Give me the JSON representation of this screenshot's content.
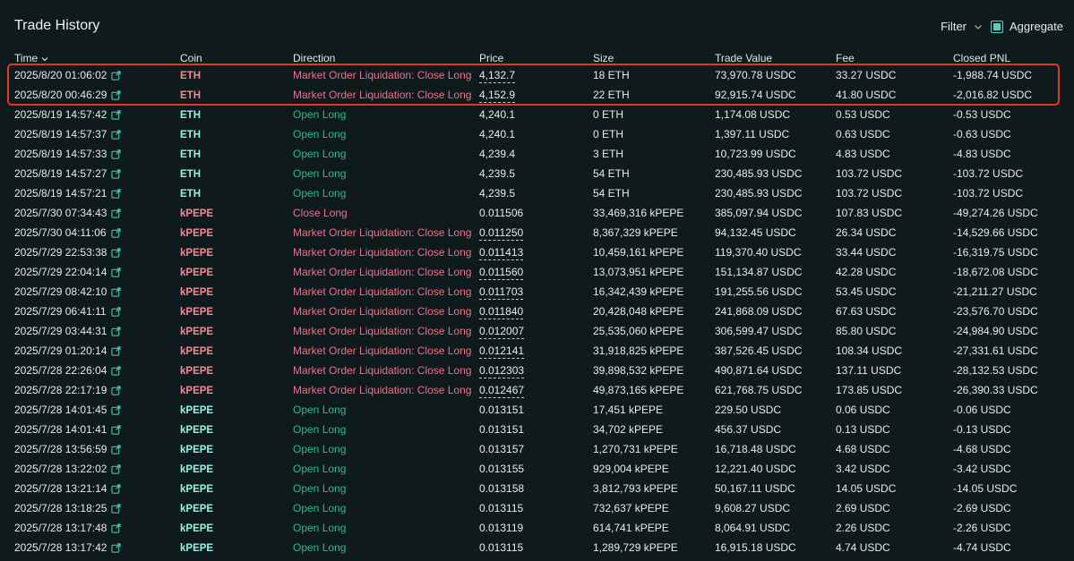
{
  "header": {
    "title": "Trade History",
    "filter_label": "Filter",
    "aggregate_label": "Aggregate",
    "aggregate_checked": true
  },
  "columns": [
    "Time",
    "Coin",
    "Direction",
    "Price",
    "Size",
    "Trade Value",
    "Fee",
    "Closed PNL"
  ],
  "colors": {
    "accent": "#50d2c1",
    "long": "#2fb996",
    "short": "#ed7088",
    "highlight": "#e5352b"
  },
  "rows": [
    {
      "time": "2025/8/20 01:06:02",
      "coin": "ETH",
      "direction": "Market Order Liquidation: Close Long",
      "price": "4,132.7",
      "size": "18 ETH",
      "value": "73,970.78 USDC",
      "fee": "33.27 USDC",
      "pnl": "-1,988.74 USDC",
      "side": "short",
      "liq": true
    },
    {
      "time": "2025/8/20 00:46:29",
      "coin": "ETH",
      "direction": "Market Order Liquidation: Close Long",
      "price": "4,152.9",
      "size": "22 ETH",
      "value": "92,915.74 USDC",
      "fee": "41.80 USDC",
      "pnl": "-2,016.82 USDC",
      "side": "short",
      "liq": true
    },
    {
      "time": "2025/8/19 14:57:42",
      "coin": "ETH",
      "direction": "Open Long",
      "price": "4,240.1",
      "size": "0 ETH",
      "value": "1,174.08 USDC",
      "fee": "0.53 USDC",
      "pnl": "-0.53 USDC",
      "side": "long",
      "liq": false
    },
    {
      "time": "2025/8/19 14:57:37",
      "coin": "ETH",
      "direction": "Open Long",
      "price": "4,240.1",
      "size": "0 ETH",
      "value": "1,397.11 USDC",
      "fee": "0.63 USDC",
      "pnl": "-0.63 USDC",
      "side": "long",
      "liq": false
    },
    {
      "time": "2025/8/19 14:57:33",
      "coin": "ETH",
      "direction": "Open Long",
      "price": "4,239.4",
      "size": "3 ETH",
      "value": "10,723.99 USDC",
      "fee": "4.83 USDC",
      "pnl": "-4.83 USDC",
      "side": "long",
      "liq": false
    },
    {
      "time": "2025/8/19 14:57:27",
      "coin": "ETH",
      "direction": "Open Long",
      "price": "4,239.5",
      "size": "54 ETH",
      "value": "230,485.93 USDC",
      "fee": "103.72 USDC",
      "pnl": "-103.72 USDC",
      "side": "long",
      "liq": false
    },
    {
      "time": "2025/8/19 14:57:21",
      "coin": "ETH",
      "direction": "Open Long",
      "price": "4,239.5",
      "size": "54 ETH",
      "value": "230,485.93 USDC",
      "fee": "103.72 USDC",
      "pnl": "-103.72 USDC",
      "side": "long",
      "liq": false
    },
    {
      "time": "2025/7/30 07:34:43",
      "coin": "kPEPE",
      "direction": "Close Long",
      "price": "0.011506",
      "size": "33,469,316 kPEPE",
      "value": "385,097.94 USDC",
      "fee": "107.83 USDC",
      "pnl": "-49,274.26 USDC",
      "side": "short",
      "liq": false
    },
    {
      "time": "2025/7/30 04:11:06",
      "coin": "kPEPE",
      "direction": "Market Order Liquidation: Close Long",
      "price": "0.011250",
      "size": "8,367,329 kPEPE",
      "value": "94,132.45 USDC",
      "fee": "26.34 USDC",
      "pnl": "-14,529.66 USDC",
      "side": "short",
      "liq": true
    },
    {
      "time": "2025/7/29 22:53:38",
      "coin": "kPEPE",
      "direction": "Market Order Liquidation: Close Long",
      "price": "0.011413",
      "size": "10,459,161 kPEPE",
      "value": "119,370.40 USDC",
      "fee": "33.44 USDC",
      "pnl": "-16,319.75 USDC",
      "side": "short",
      "liq": true
    },
    {
      "time": "2025/7/29 22:04:14",
      "coin": "kPEPE",
      "direction": "Market Order Liquidation: Close Long",
      "price": "0.011560",
      "size": "13,073,951 kPEPE",
      "value": "151,134.87 USDC",
      "fee": "42.28 USDC",
      "pnl": "-18,672.08 USDC",
      "side": "short",
      "liq": true
    },
    {
      "time": "2025/7/29 08:42:10",
      "coin": "kPEPE",
      "direction": "Market Order Liquidation: Close Long",
      "price": "0.011703",
      "size": "16,342,439 kPEPE",
      "value": "191,255.56 USDC",
      "fee": "53.45 USDC",
      "pnl": "-21,211.27 USDC",
      "side": "short",
      "liq": true
    },
    {
      "time": "2025/7/29 06:41:11",
      "coin": "kPEPE",
      "direction": "Market Order Liquidation: Close Long",
      "price": "0.011840",
      "size": "20,428,048 kPEPE",
      "value": "241,868.09 USDC",
      "fee": "67.63 USDC",
      "pnl": "-23,576.70 USDC",
      "side": "short",
      "liq": true
    },
    {
      "time": "2025/7/29 03:44:31",
      "coin": "kPEPE",
      "direction": "Market Order Liquidation: Close Long",
      "price": "0.012007",
      "size": "25,535,060 kPEPE",
      "value": "306,599.47 USDC",
      "fee": "85.80 USDC",
      "pnl": "-24,984.90 USDC",
      "side": "short",
      "liq": true
    },
    {
      "time": "2025/7/29 01:20:14",
      "coin": "kPEPE",
      "direction": "Market Order Liquidation: Close Long",
      "price": "0.012141",
      "size": "31,918,825 kPEPE",
      "value": "387,526.45 USDC",
      "fee": "108.34 USDC",
      "pnl": "-27,331.61 USDC",
      "side": "short",
      "liq": true
    },
    {
      "time": "2025/7/28 22:26:04",
      "coin": "kPEPE",
      "direction": "Market Order Liquidation: Close Long",
      "price": "0.012303",
      "size": "39,898,532 kPEPE",
      "value": "490,871.64 USDC",
      "fee": "137.11 USDC",
      "pnl": "-28,132.53 USDC",
      "side": "short",
      "liq": true
    },
    {
      "time": "2025/7/28 22:17:19",
      "coin": "kPEPE",
      "direction": "Market Order Liquidation: Close Long",
      "price": "0.012467",
      "size": "49,873,165 kPEPE",
      "value": "621,768.75 USDC",
      "fee": "173.85 USDC",
      "pnl": "-26,390.33 USDC",
      "side": "short",
      "liq": true
    },
    {
      "time": "2025/7/28 14:01:45",
      "coin": "kPEPE",
      "direction": "Open Long",
      "price": "0.013151",
      "size": "17,451 kPEPE",
      "value": "229.50 USDC",
      "fee": "0.06 USDC",
      "pnl": "-0.06 USDC",
      "side": "long",
      "liq": false
    },
    {
      "time": "2025/7/28 14:01:41",
      "coin": "kPEPE",
      "direction": "Open Long",
      "price": "0.013151",
      "size": "34,702 kPEPE",
      "value": "456.37 USDC",
      "fee": "0.13 USDC",
      "pnl": "-0.13 USDC",
      "side": "long",
      "liq": false
    },
    {
      "time": "2025/7/28 13:56:59",
      "coin": "kPEPE",
      "direction": "Open Long",
      "price": "0.013157",
      "size": "1,270,731 kPEPE",
      "value": "16,718.48 USDC",
      "fee": "4.68 USDC",
      "pnl": "-4.68 USDC",
      "side": "long",
      "liq": false
    },
    {
      "time": "2025/7/28 13:22:02",
      "coin": "kPEPE",
      "direction": "Open Long",
      "price": "0.013155",
      "size": "929,004 kPEPE",
      "value": "12,221.40 USDC",
      "fee": "3.42 USDC",
      "pnl": "-3.42 USDC",
      "side": "long",
      "liq": false
    },
    {
      "time": "2025/7/28 13:21:14",
      "coin": "kPEPE",
      "direction": "Open Long",
      "price": "0.013158",
      "size": "3,812,793 kPEPE",
      "value": "50,167.11 USDC",
      "fee": "14.05 USDC",
      "pnl": "-14.05 USDC",
      "side": "long",
      "liq": false
    },
    {
      "time": "2025/7/28 13:18:25",
      "coin": "kPEPE",
      "direction": "Open Long",
      "price": "0.013115",
      "size": "732,637 kPEPE",
      "value": "9,608.27 USDC",
      "fee": "2.69 USDC",
      "pnl": "-2.69 USDC",
      "side": "long",
      "liq": false
    },
    {
      "time": "2025/7/28 13:17:48",
      "coin": "kPEPE",
      "direction": "Open Long",
      "price": "0.013119",
      "size": "614,741 kPEPE",
      "value": "8,064.91 USDC",
      "fee": "2.26 USDC",
      "pnl": "-2.26 USDC",
      "side": "long",
      "liq": false
    },
    {
      "time": "2025/7/28 13:17:42",
      "coin": "kPEPE",
      "direction": "Open Long",
      "price": "0.013115",
      "size": "1,289,729 kPEPE",
      "value": "16,915.18 USDC",
      "fee": "4.74 USDC",
      "pnl": "-4.74 USDC",
      "side": "long",
      "liq": false
    }
  ]
}
